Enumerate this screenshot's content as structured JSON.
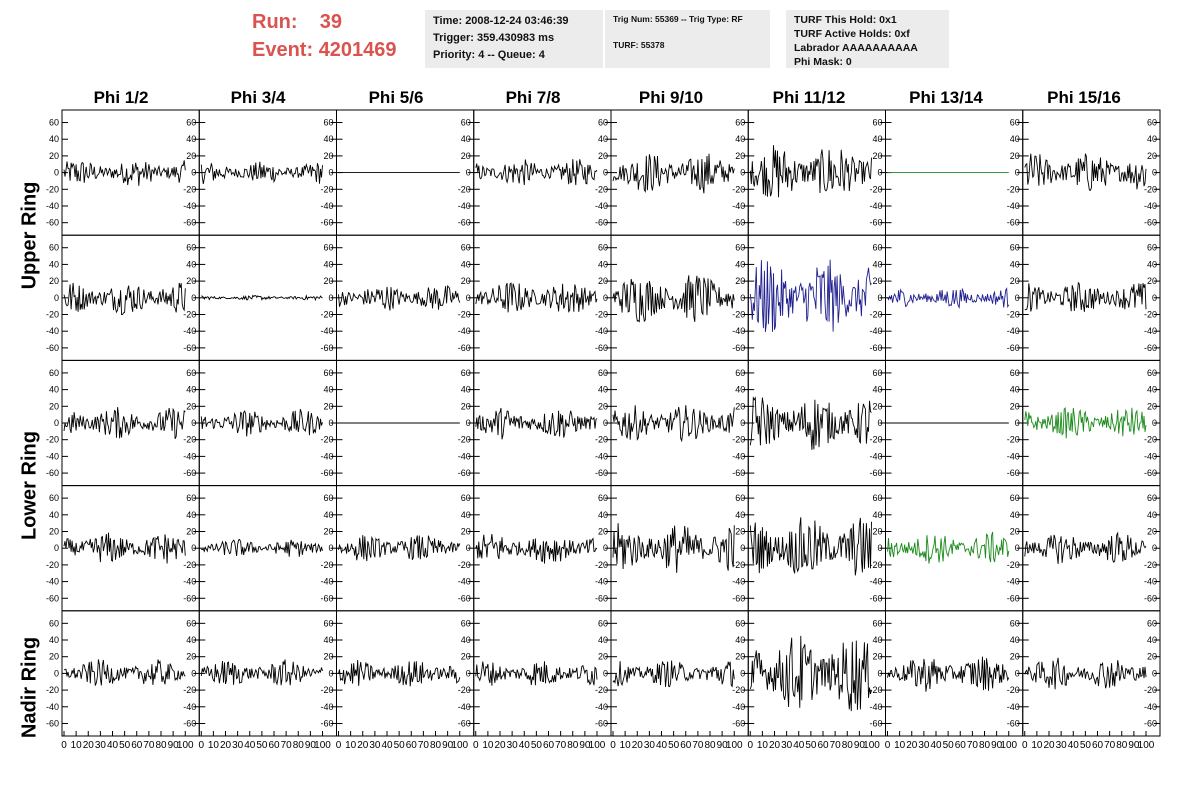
{
  "run": {
    "run_label": "Run:",
    "run_value": "39",
    "event_label": "Event:",
    "event_value": "4201469"
  },
  "info_box_1": {
    "line1": "Time: 2008-12-24 03:46:39",
    "line2": "Trigger: 359.430983 ms",
    "line3": "Priority: 4 -- Queue: 4"
  },
  "info_box_2": {
    "line1": "Trig Num: 55369 -- Trig Type: RF",
    "line2": "TURF: 55378"
  },
  "info_box_3": {
    "line1": "TURF This Hold: 0x1",
    "line2": "TURF Active Holds: 0xf",
    "line3": "Labrador AAAAAAAAAA",
    "line4": "Phi Mask: 0"
  },
  "columns": [
    "Phi 1/2",
    "Phi 3/4",
    "Phi 5/6",
    "Phi 7/8",
    "Phi 9/10",
    "Phi 11/12",
    "Phi 13/14",
    "Phi 15/16"
  ],
  "rings": [
    "Upper Ring",
    "Lower Ring",
    "Nadir Ring"
  ],
  "y_ticks": [
    "60",
    "40",
    "20",
    "0",
    "-20",
    "-40",
    "-60"
  ],
  "x_ticks": [
    "0",
    "10",
    "20",
    "30",
    "40",
    "50",
    "60",
    "70",
    "80",
    "90",
    "100"
  ],
  "colors": {
    "black": "#000000",
    "blue": "#1f1f8f",
    "green": "#1a8a1a",
    "run_text": "#d9534f"
  },
  "waveforms": [
    [
      {
        "amp": 12,
        "color": "black"
      },
      {
        "amp": 10,
        "color": "black"
      },
      {
        "amp": 0,
        "color": "black"
      },
      {
        "amp": 12,
        "color": "black"
      },
      {
        "amp": 18,
        "color": "black"
      },
      {
        "amp": 25,
        "color": "black"
      },
      {
        "amp": 0,
        "color": "green"
      },
      {
        "amp": 18,
        "color": "black"
      }
    ],
    [
      {
        "amp": 15,
        "color": "black"
      },
      {
        "amp": 2,
        "color": "black"
      },
      {
        "amp": 12,
        "color": "black"
      },
      {
        "amp": 15,
        "color": "black"
      },
      {
        "amp": 22,
        "color": "black"
      },
      {
        "amp": 35,
        "color": "blue"
      },
      {
        "amp": 9,
        "color": "blue"
      },
      {
        "amp": 14,
        "color": "black"
      }
    ],
    [
      {
        "amp": 14,
        "color": "black"
      },
      {
        "amp": 12,
        "color": "black"
      },
      {
        "amp": 0,
        "color": "black"
      },
      {
        "amp": 14,
        "color": "black"
      },
      {
        "amp": 16,
        "color": "black"
      },
      {
        "amp": 25,
        "color": "black"
      },
      {
        "amp": 0,
        "color": "black"
      },
      {
        "amp": 14,
        "color": "green"
      }
    ],
    [
      {
        "amp": 14,
        "color": "black"
      },
      {
        "amp": 8,
        "color": "black"
      },
      {
        "amp": 12,
        "color": "black"
      },
      {
        "amp": 14,
        "color": "black"
      },
      {
        "amp": 22,
        "color": "black"
      },
      {
        "amp": 28,
        "color": "black"
      },
      {
        "amp": 14,
        "color": "green"
      },
      {
        "amp": 14,
        "color": "black"
      }
    ],
    [
      {
        "amp": 12,
        "color": "black"
      },
      {
        "amp": 12,
        "color": "black"
      },
      {
        "amp": 12,
        "color": "black"
      },
      {
        "amp": 12,
        "color": "black"
      },
      {
        "amp": 12,
        "color": "black"
      },
      {
        "amp": 35,
        "color": "black"
      },
      {
        "amp": 16,
        "color": "black"
      },
      {
        "amp": 14,
        "color": "black"
      }
    ]
  ]
}
